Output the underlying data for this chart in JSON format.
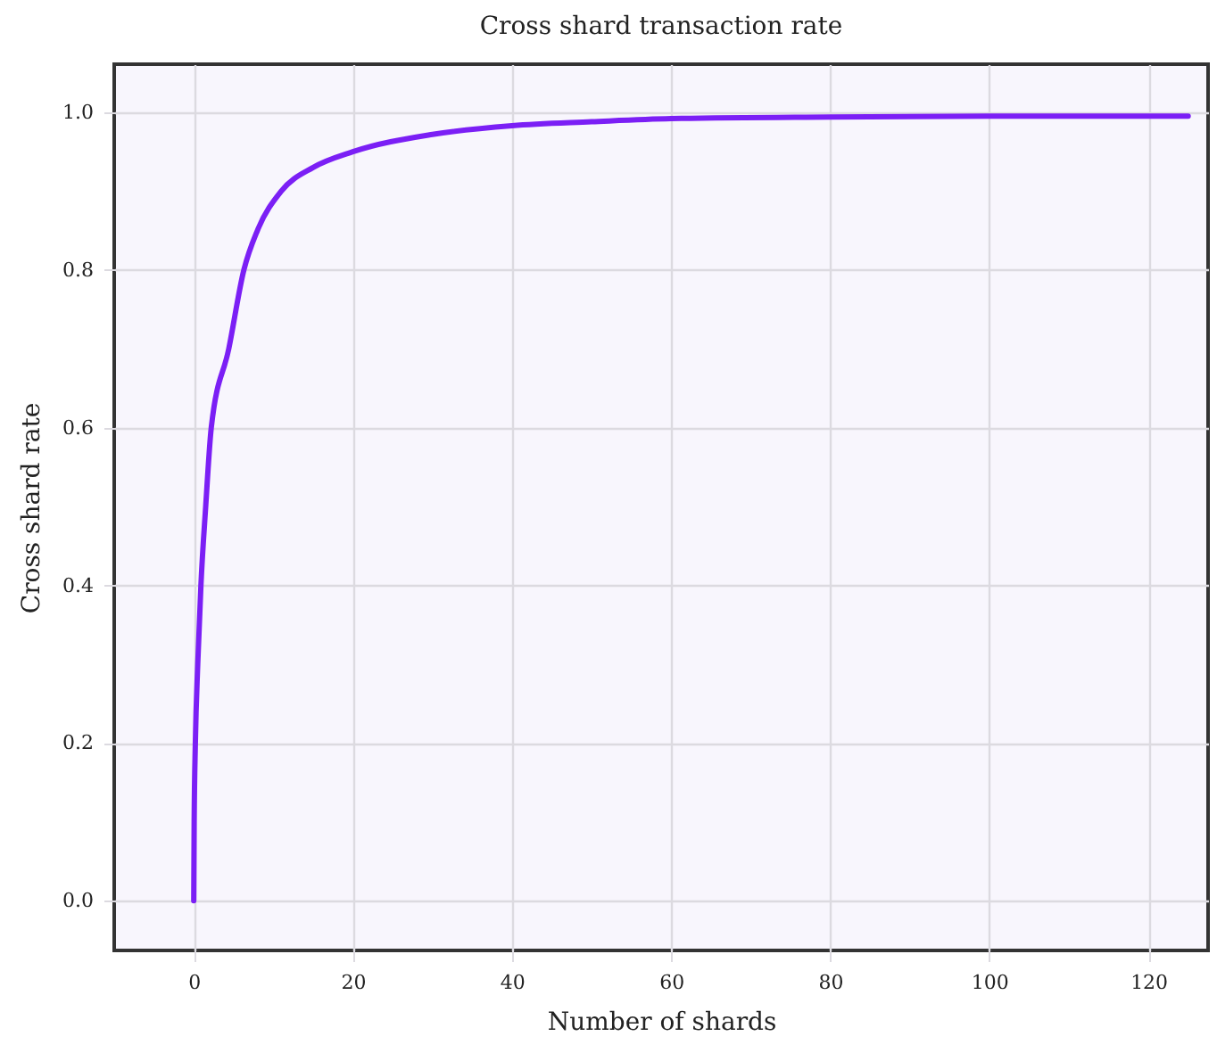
{
  "chart_data": {
    "type": "line",
    "title": "Cross shard transaction rate",
    "xlabel": "Number of shards",
    "ylabel": "Cross shard rate",
    "x": [
      0,
      0.05,
      0.2,
      0.5,
      0.9,
      1.5,
      2.2,
      4.4,
      6.3,
      8,
      11,
      15,
      20,
      30,
      40,
      50,
      60,
      80,
      100,
      125
    ],
    "series": [
      {
        "color": "#7b1ff5",
        "values": [
          0,
          0.1,
          0.2,
          0.3,
          0.4,
          0.5,
          0.6,
          0.7,
          0.8,
          0.85,
          0.9,
          0.93,
          0.95,
          0.972,
          0.983,
          0.988,
          0.992,
          0.994,
          0.995,
          0.995
        ]
      }
    ],
    "xlim": [
      -10,
      127.5
    ],
    "xticks": [
      0,
      20,
      40,
      60,
      80,
      100,
      120
    ],
    "ylim": [
      -0.063,
      1.061
    ],
    "yticks": [
      {
        "value": 0,
        "label": "0.0"
      },
      {
        "value": 0.2,
        "label": "0.2"
      },
      {
        "value": 0.4,
        "label": "0.4"
      },
      {
        "value": 0.6,
        "label": "0.6"
      },
      {
        "value": 0.8,
        "label": "0.8"
      },
      {
        "value": 1.0,
        "label": "1.0"
      }
    ],
    "grid": true,
    "marker": "none",
    "line_style": "solid"
  }
}
